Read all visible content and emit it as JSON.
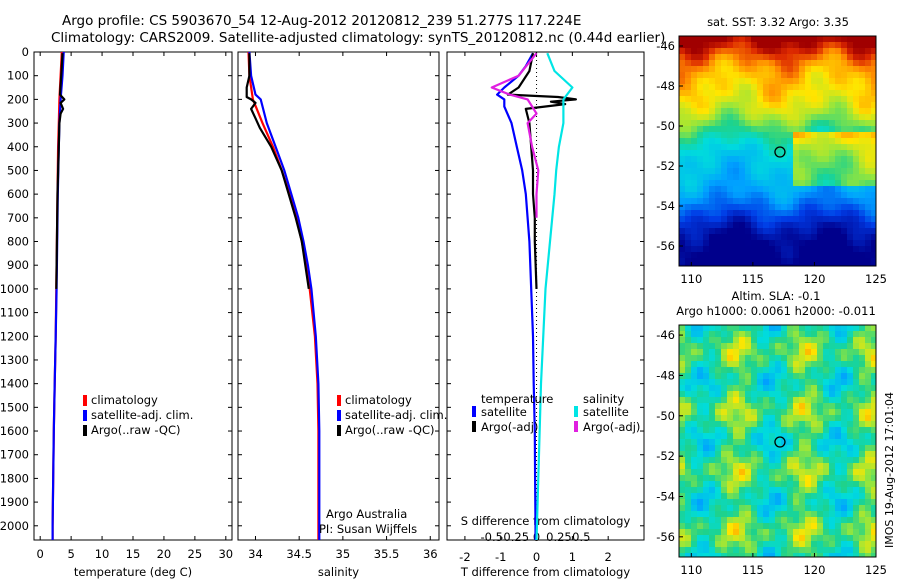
{
  "title": {
    "line1": "Argo profile: CS 5903670_54 12-Aug-2012 20120812_239 51.277S 117.224E",
    "line2": "Climatology: CARS2009. Satellite-adjusted climatology: synTS_20120812.nc (0.44d earlier)"
  },
  "colors": {
    "climatology": "#ff0000",
    "satellite": "#0000ff",
    "argo": "#000000",
    "cyan": "#00e5e5",
    "magenta": "#e020e0"
  },
  "chart_data": [
    {
      "type": "line",
      "xlabel": "temperature (deg C)",
      "ylabel": "",
      "xlim": [
        -1,
        31
      ],
      "ylim": [
        2060,
        0
      ],
      "xticks": [
        "0",
        "5",
        "10",
        "15",
        "20",
        "25",
        "30"
      ],
      "yticks": [
        "0",
        "100",
        "200",
        "300",
        "400",
        "500",
        "600",
        "700",
        "800",
        "900",
        "1000",
        "1100",
        "1200",
        "1300",
        "1400",
        "1500",
        "1600",
        "1700",
        "1800",
        "1900",
        "2000"
      ],
      "legend": [
        "climatology",
        "satellite-adj. clim.",
        "Argo(..raw -QC)"
      ],
      "series": [
        {
          "name": "climatology",
          "color": "#ff0000",
          "depth": [
            0,
            100,
            200,
            300,
            400,
            600,
            800,
            1000,
            1200,
            1400,
            1600,
            1800,
            2000,
            2060
          ],
          "values": [
            3.5,
            3.3,
            3.1,
            3.0,
            2.9,
            2.8,
            2.7,
            2.6,
            2.5,
            2.35,
            2.2,
            2.1,
            2.0,
            2.0
          ]
        },
        {
          "name": "satellite-adj. clim.",
          "color": "#0000ff",
          "depth": [
            0,
            100,
            200,
            300,
            400,
            600,
            800,
            1000,
            1200,
            1400,
            1600,
            1800,
            2000,
            2060
          ],
          "values": [
            3.8,
            3.6,
            3.3,
            3.1,
            3.0,
            2.85,
            2.75,
            2.65,
            2.5,
            2.35,
            2.2,
            2.1,
            2.0,
            2.0
          ]
        },
        {
          "name": "Argo(..raw -QC)",
          "color": "#000000",
          "depth": [
            5,
            100,
            180,
            200,
            215,
            240,
            260,
            300,
            400,
            600,
            800,
            1000
          ],
          "values": [
            3.6,
            3.4,
            3.2,
            3.9,
            3.3,
            3.7,
            3.3,
            3.1,
            3.0,
            2.8,
            2.7,
            2.6
          ]
        }
      ]
    },
    {
      "type": "line",
      "xlabel": "salinity",
      "xlim": [
        33.8,
        36.1
      ],
      "ylim": [
        2060,
        0
      ],
      "xticks": [
        "34",
        "34.5",
        "35",
        "35.5",
        "36"
      ],
      "legend": [
        "climatology",
        "satellite-adj. clim.",
        "Argo(..raw -QC)"
      ],
      "annotation": [
        "Argo Australia",
        "PI: Susan Wijffels"
      ],
      "series": [
        {
          "name": "climatology",
          "color": "#ff0000",
          "depth": [
            0,
            100,
            200,
            300,
            400,
            500,
            600,
            700,
            800,
            900,
            1000,
            1200,
            1400,
            1600,
            1800,
            2060
          ],
          "values": [
            33.92,
            33.93,
            33.97,
            34.08,
            34.2,
            34.3,
            34.39,
            34.47,
            34.53,
            34.58,
            34.62,
            34.68,
            34.71,
            34.72,
            34.72,
            34.72
          ]
        },
        {
          "name": "satellite-adj. clim.",
          "color": "#0000ff",
          "depth": [
            0,
            100,
            180,
            200,
            300,
            400,
            500,
            600,
            700,
            800,
            900,
            1000,
            1200,
            1400,
            1600,
            1800,
            2060
          ],
          "values": [
            33.93,
            33.95,
            34.0,
            34.06,
            34.13,
            34.23,
            34.33,
            34.41,
            34.49,
            34.55,
            34.6,
            34.64,
            34.69,
            34.72,
            34.73,
            34.73,
            34.73
          ]
        },
        {
          "name": "Argo(..raw -QC)",
          "color": "#000000",
          "depth": [
            5,
            100,
            150,
            190,
            200,
            215,
            240,
            280,
            320,
            400,
            500,
            600,
            700,
            800,
            1000
          ],
          "values": [
            33.93,
            33.93,
            33.9,
            33.9,
            33.95,
            34.0,
            33.95,
            34.0,
            34.05,
            34.18,
            34.3,
            34.38,
            34.46,
            34.53,
            34.61
          ]
        }
      ]
    },
    {
      "type": "line",
      "xlabel": "T difference from climatology",
      "xlabel2": "S difference from climatology",
      "xlim": [
        -2.5,
        3
      ],
      "ylim": [
        2060,
        0
      ],
      "xticks": [
        "-2",
        "-1",
        "0",
        "1",
        "2"
      ],
      "xticks2": [
        "-0.5",
        "-0.25",
        "0",
        "0.25",
        "0.5"
      ],
      "legend_titles": [
        "temperature",
        "salinity"
      ],
      "legend": [
        "satellite",
        "Argo(-adj)",
        "satellite",
        "Argo(-adj)"
      ],
      "series": [
        {
          "name": "temperature satellite",
          "color": "#0000ff",
          "depth": [
            5,
            60,
            100,
            150,
            180,
            200,
            230,
            300,
            400,
            500,
            600,
            700,
            800,
            1000,
            1200,
            1400,
            1600,
            1800,
            2000,
            2060
          ],
          "values": [
            -0.1,
            -0.3,
            -0.5,
            -0.9,
            -1.1,
            -0.9,
            -0.9,
            -0.7,
            -0.55,
            -0.4,
            -0.3,
            -0.25,
            -0.2,
            -0.15,
            -0.1,
            -0.08,
            -0.05,
            -0.04,
            -0.03,
            -0.03
          ]
        },
        {
          "name": "temperature Argo(-adj)",
          "color": "#000000",
          "depth": [
            5,
            80,
            150,
            180,
            190,
            200,
            210,
            220,
            240,
            300,
            400,
            500,
            600,
            700,
            800,
            1000
          ],
          "values": [
            -0.1,
            -0.2,
            -0.5,
            -0.8,
            0.6,
            1.1,
            0.4,
            0.8,
            -0.3,
            -0.2,
            -0.15,
            -0.1,
            -0.1,
            -0.05,
            -0.05,
            0.0
          ]
        },
        {
          "name": "salinity satellite",
          "color": "#00e5e5",
          "depth": [
            5,
            80,
            150,
            200,
            250,
            300,
            400,
            500,
            600,
            800,
            1000,
            1400,
            1800,
            2060
          ],
          "values": [
            0.12,
            0.2,
            0.4,
            0.3,
            0.3,
            0.3,
            0.25,
            0.22,
            0.2,
            0.15,
            0.1,
            0.05,
            0.02,
            0.0
          ]
        },
        {
          "name": "salinity Argo(-adj)",
          "color": "#e020e0",
          "depth": [
            5,
            100,
            150,
            180,
            200,
            230,
            260,
            300,
            400,
            500,
            600,
            700
          ],
          "values": [
            0.0,
            -0.2,
            -0.5,
            -0.3,
            -0.1,
            -0.05,
            0.0,
            -0.1,
            -0.05,
            0.02,
            0.0,
            0.0
          ]
        }
      ]
    },
    {
      "type": "heatmap",
      "title": "sat. SST: 3.32  Argo: 3.35",
      "xlim": [
        109,
        125
      ],
      "ylim": [
        -57,
        -45.5
      ],
      "xticks": [
        "110",
        "115",
        "120",
        "125"
      ],
      "yticks": [
        "-46",
        "-48",
        "-50",
        "-52",
        "-54",
        "-56"
      ],
      "marker": [
        117.2,
        -51.3
      ]
    },
    {
      "type": "heatmap",
      "title": "Altim. SLA: -0.1",
      "subtitle": "Argo h1000: 0.0061  h2000: -0.011",
      "xlim": [
        109,
        125
      ],
      "ylim": [
        -57,
        -45.5
      ],
      "xticks": [
        "110",
        "115",
        "120",
        "125"
      ],
      "yticks": [
        "-46",
        "-48",
        "-50",
        "-52",
        "-54",
        "-56"
      ],
      "marker": [
        117.2,
        -51.3
      ]
    }
  ],
  "stamp": "IMOS 19-Aug-2012 17:01:04"
}
